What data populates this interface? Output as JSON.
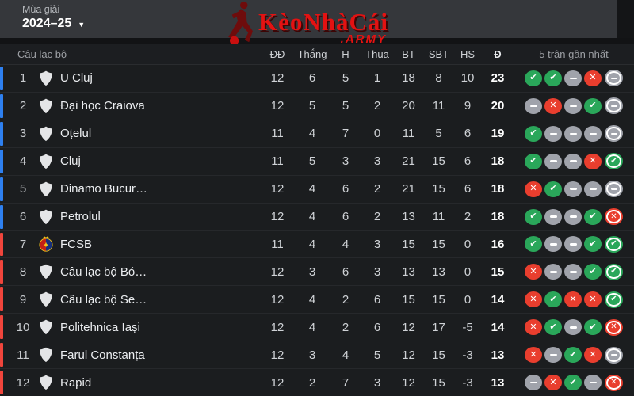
{
  "season": {
    "label": "Mùa giải",
    "value": "2024–25"
  },
  "logo": {
    "text": "KèoNhàCái",
    "suffix": ".ARMY"
  },
  "colors": {
    "zone_blue": "#2e80f0",
    "zone_red": "#f0453c",
    "win": "#2aa75a",
    "draw": "#a0a3ab",
    "loss": "#e93e2e",
    "accent_red": "#e31212"
  },
  "table": {
    "headers": {
      "club": "Câu lạc bộ",
      "played": "ĐĐ",
      "wins": "Thắng",
      "draws": "H",
      "losses": "Thua",
      "goals_for": "BT",
      "goals_against": "SBT",
      "goal_diff": "HS",
      "points": "Đ",
      "form": "5 trận gần nhất"
    },
    "rows": [
      {
        "rank": 1,
        "name": "U Cluj",
        "crest": "shield",
        "zone": "blue",
        "played": 12,
        "wins": 6,
        "draws": 5,
        "losses": 1,
        "gf": 18,
        "ga": 8,
        "gd": "10",
        "pts": 23,
        "form": [
          "w",
          "w",
          "d",
          "l",
          "d"
        ]
      },
      {
        "rank": 2,
        "name": "Đại học Craiova",
        "crest": "shield",
        "zone": "blue",
        "played": 12,
        "wins": 5,
        "draws": 5,
        "losses": 2,
        "gf": 20,
        "ga": 11,
        "gd": "9",
        "pts": 20,
        "form": [
          "d",
          "l",
          "d",
          "w",
          "d"
        ]
      },
      {
        "rank": 3,
        "name": "Oțelul",
        "crest": "shield",
        "zone": "blue",
        "played": 11,
        "wins": 4,
        "draws": 7,
        "losses": 0,
        "gf": 11,
        "ga": 5,
        "gd": "6",
        "pts": 19,
        "form": [
          "w",
          "d",
          "d",
          "d",
          "d"
        ]
      },
      {
        "rank": 4,
        "name": "Cluj",
        "crest": "shield",
        "zone": "blue",
        "played": 11,
        "wins": 5,
        "draws": 3,
        "losses": 3,
        "gf": 21,
        "ga": 15,
        "gd": "6",
        "pts": 18,
        "form": [
          "w",
          "d",
          "d",
          "l",
          "w"
        ]
      },
      {
        "rank": 5,
        "name": "Dinamo Bucur…",
        "crest": "shield",
        "zone": "blue",
        "played": 12,
        "wins": 4,
        "draws": 6,
        "losses": 2,
        "gf": 21,
        "ga": 15,
        "gd": "6",
        "pts": 18,
        "form": [
          "l",
          "w",
          "d",
          "d",
          "d"
        ]
      },
      {
        "rank": 6,
        "name": "Petrolul",
        "crest": "shield",
        "zone": "blue",
        "played": 12,
        "wins": 4,
        "draws": 6,
        "losses": 2,
        "gf": 13,
        "ga": 11,
        "gd": "2",
        "pts": 18,
        "form": [
          "w",
          "d",
          "d",
          "w",
          "l"
        ]
      },
      {
        "rank": 7,
        "name": "FCSB",
        "crest": "fcsb",
        "zone": "red",
        "played": 11,
        "wins": 4,
        "draws": 4,
        "losses": 3,
        "gf": 15,
        "ga": 15,
        "gd": "0",
        "pts": 16,
        "form": [
          "w",
          "d",
          "d",
          "w",
          "w"
        ]
      },
      {
        "rank": 8,
        "name": "Câu lạc bộ Bó…",
        "crest": "shield",
        "zone": "red",
        "played": 12,
        "wins": 3,
        "draws": 6,
        "losses": 3,
        "gf": 13,
        "ga": 13,
        "gd": "0",
        "pts": 15,
        "form": [
          "l",
          "d",
          "d",
          "w",
          "w"
        ]
      },
      {
        "rank": 9,
        "name": "Câu lạc bộ Se…",
        "crest": "shield",
        "zone": "red",
        "played": 12,
        "wins": 4,
        "draws": 2,
        "losses": 6,
        "gf": 15,
        "ga": 15,
        "gd": "0",
        "pts": 14,
        "form": [
          "l",
          "w",
          "l",
          "l",
          "w"
        ]
      },
      {
        "rank": 10,
        "name": "Politehnica Iași",
        "crest": "shield",
        "zone": "red",
        "played": 12,
        "wins": 4,
        "draws": 2,
        "losses": 6,
        "gf": 12,
        "ga": 17,
        "gd": "-5",
        "pts": 14,
        "form": [
          "l",
          "w",
          "d",
          "w",
          "l"
        ]
      },
      {
        "rank": 11,
        "name": "Farul Constanța",
        "crest": "shield",
        "zone": "red",
        "played": 12,
        "wins": 3,
        "draws": 4,
        "losses": 5,
        "gf": 12,
        "ga": 15,
        "gd": "-3",
        "pts": 13,
        "form": [
          "l",
          "d",
          "w",
          "l",
          "d"
        ]
      },
      {
        "rank": 12,
        "name": "Rapid",
        "crest": "shield",
        "zone": "red",
        "played": 12,
        "wins": 2,
        "draws": 7,
        "losses": 3,
        "gf": 12,
        "ga": 15,
        "gd": "-3",
        "pts": 13,
        "form": [
          "d",
          "l",
          "w",
          "d",
          "l"
        ]
      }
    ]
  }
}
